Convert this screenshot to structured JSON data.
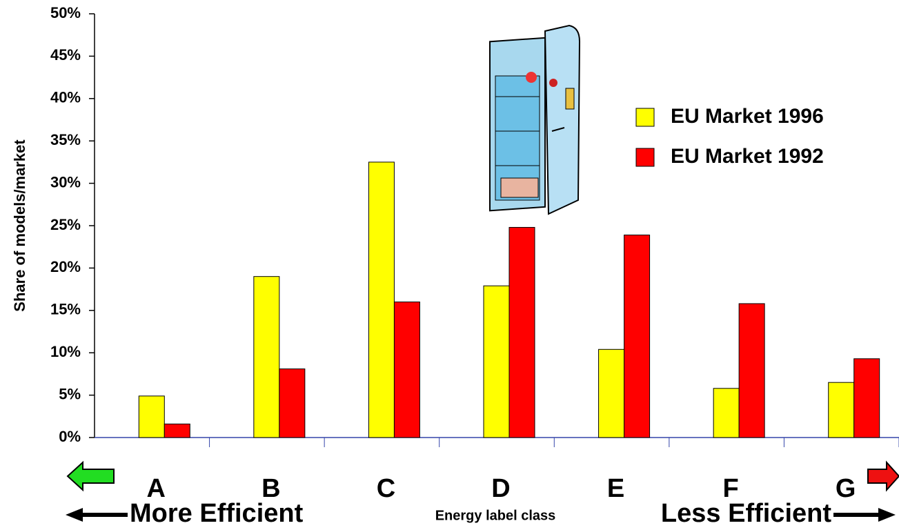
{
  "chart_data": {
    "type": "bar",
    "y_label": "Share of models/market",
    "x_label": "Energy label class",
    "annotations": [
      "More Efficient",
      "Less Efficient"
    ],
    "categories": [
      "A",
      "B",
      "C",
      "D",
      "E",
      "F",
      "G"
    ],
    "series": [
      {
        "name": "EU Market 1996",
        "color": "#ffff00",
        "values": [
          4.9,
          19.0,
          32.5,
          17.9,
          10.4,
          5.8,
          6.5
        ]
      },
      {
        "name": "EU Market 1992",
        "color": "#ff0000",
        "values": [
          1.6,
          8.1,
          16.0,
          24.8,
          23.9,
          15.8,
          9.3
        ]
      }
    ],
    "ylim": [
      0,
      50
    ],
    "yticks": [
      {
        "value": 0,
        "label": "0%"
      },
      {
        "value": 5,
        "label": "5%"
      },
      {
        "value": 10,
        "label": "10%"
      },
      {
        "value": 15,
        "label": "15%"
      },
      {
        "value": 20,
        "label": "20%"
      },
      {
        "value": 25,
        "label": "25%"
      },
      {
        "value": 30,
        "label": "30%"
      },
      {
        "value": 35,
        "label": "35%"
      },
      {
        "value": 40,
        "label": "40%"
      },
      {
        "value": 45,
        "label": "45%"
      },
      {
        "value": 50,
        "label": "50%"
      }
    ],
    "grid": false,
    "legend": "upper right"
  }
}
